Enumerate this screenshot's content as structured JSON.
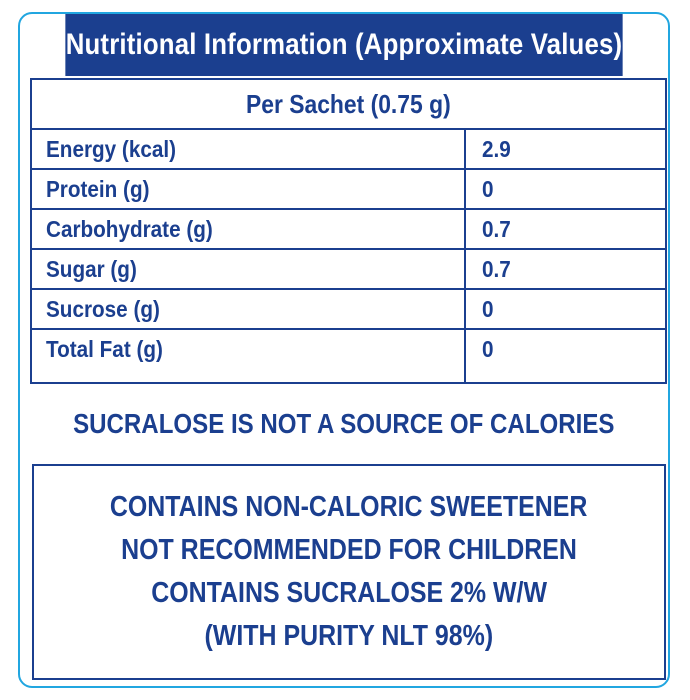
{
  "header": {
    "title": "Nutritional Information (Approximate Values)"
  },
  "table": {
    "serving_label": "Per Sachet (0.75 g)",
    "rows": [
      {
        "name": "Energy (kcal)",
        "value": "2.9"
      },
      {
        "name": "Protein (g)",
        "value": "0"
      },
      {
        "name": "Carbohydrate (g)",
        "value": "0.7"
      },
      {
        "name": "Sugar (g)",
        "value": "0.7"
      },
      {
        "name": "Sucrose (g)",
        "value": "0"
      },
      {
        "name": "Total Fat (g)",
        "value": "0"
      }
    ]
  },
  "notice": "SUCRALOSE IS NOT A SOURCE OF CALORIES",
  "warnings": [
    "CONTAINS NON-CALORIC SWEETENER",
    "NOT RECOMMENDED FOR CHILDREN",
    "CONTAINS SUCRALOSE 2% W/W",
    "(WITH PURITY NLT 98%)"
  ],
  "colors": {
    "brand_blue": "#1b3f8f",
    "border_accent": "#21a6e0",
    "background": "#ffffff"
  }
}
